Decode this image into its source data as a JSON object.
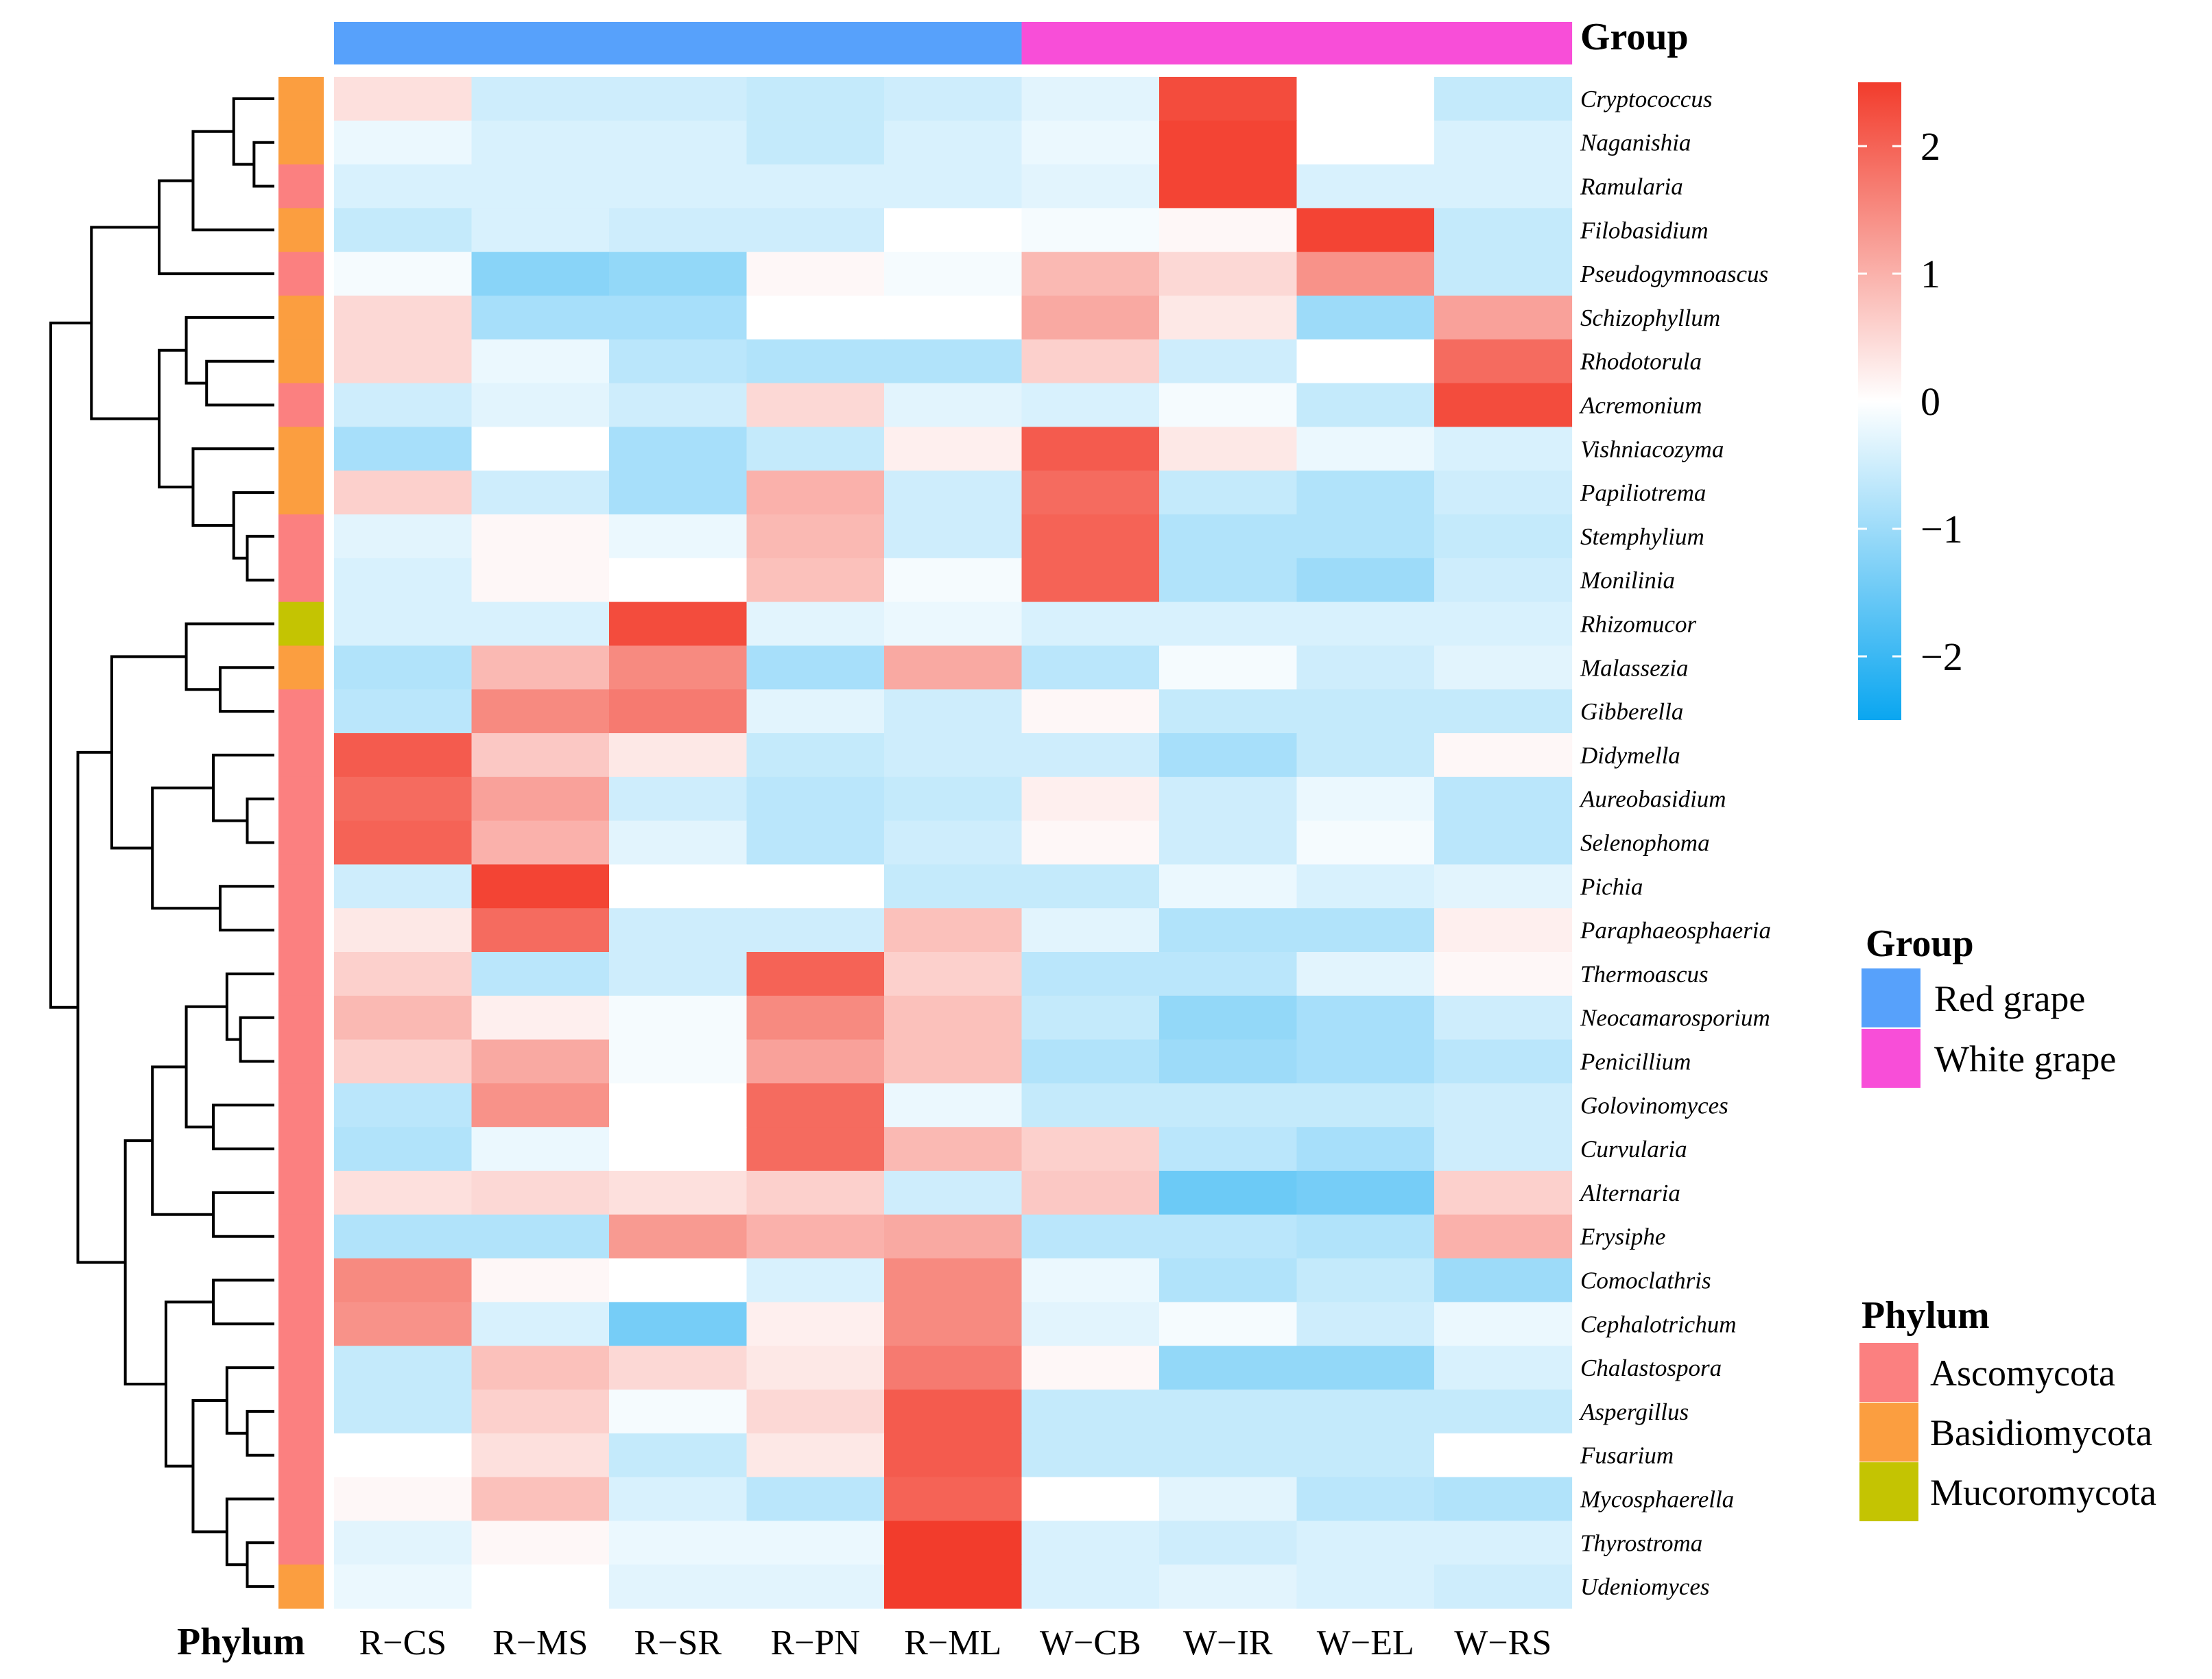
{
  "chart_data": {
    "type": "heatmap",
    "title": "",
    "columns": [
      "R−CS",
      "R−MS",
      "R−SR",
      "R−PN",
      "R−ML",
      "W−CB",
      "W−IR",
      "W−EL",
      "W−RS"
    ],
    "column_groups": [
      "Red grape",
      "Red grape",
      "Red grape",
      "Red grape",
      "Red grape",
      "White grape",
      "White grape",
      "White grape",
      "White grape"
    ],
    "rows": [
      "Cryptococcus",
      "Naganishia",
      "Ramularia",
      "Filobasidium",
      "Pseudogymnoascus",
      "Schizophyllum",
      "Rhodotorula",
      "Acremonium",
      "Vishniacozyma",
      "Papiliotrema",
      "Stemphylium",
      "Monilinia",
      "Rhizomucor",
      "Malassezia",
      "Gibberella",
      "Didymella",
      "Aureobasidium",
      "Selenophoma",
      "Pichia",
      "Paraphaeosphaeria",
      "Thermoascus",
      "Neocamarosporium",
      "Penicillium",
      "Golovinomyces",
      "Curvularia",
      "Alternaria",
      "Erysiphe",
      "Comoclathris",
      "Cephalotrichum",
      "Chalastospora",
      "Aspergillus",
      "Fusarium",
      "Mycosphaerella",
      "Thyrostroma",
      "Udeniomyces"
    ],
    "row_phylum": [
      "Basidiomycota",
      "Basidiomycota",
      "Ascomycota",
      "Basidiomycota",
      "Ascomycota",
      "Basidiomycota",
      "Basidiomycota",
      "Ascomycota",
      "Basidiomycota",
      "Basidiomycota",
      "Ascomycota",
      "Ascomycota",
      "Mucoromycota",
      "Basidiomycota",
      "Ascomycota",
      "Ascomycota",
      "Ascomycota",
      "Ascomycota",
      "Ascomycota",
      "Ascomycota",
      "Ascomycota",
      "Ascomycota",
      "Ascomycota",
      "Ascomycota",
      "Ascomycota",
      "Ascomycota",
      "Ascomycota",
      "Ascomycota",
      "Ascomycota",
      "Ascomycota",
      "Ascomycota",
      "Ascomycota",
      "Ascomycota",
      "Ascomycota",
      "Basidiomycota"
    ],
    "values": [
      [
        0.4,
        -0.5,
        -0.5,
        -0.6,
        -0.5,
        -0.3,
        2.3,
        0.0,
        -0.6
      ],
      [
        -0.2,
        -0.4,
        -0.4,
        -0.6,
        -0.4,
        -0.2,
        2.4,
        0.0,
        -0.4
      ],
      [
        -0.4,
        -0.4,
        -0.4,
        -0.4,
        -0.4,
        -0.3,
        2.4,
        -0.4,
        -0.4
      ],
      [
        -0.6,
        -0.4,
        -0.5,
        -0.5,
        0.0,
        -0.1,
        0.1,
        2.4,
        -0.6
      ],
      [
        -0.1,
        -1.2,
        -1.1,
        0.1,
        -0.1,
        0.9,
        0.5,
        1.4,
        -0.6
      ],
      [
        0.5,
        -0.9,
        -0.9,
        0.0,
        0.0,
        1.1,
        0.3,
        -1.0,
        1.2
      ],
      [
        0.5,
        -0.2,
        -0.7,
        -0.8,
        -0.8,
        0.6,
        -0.5,
        0.0,
        1.9
      ],
      [
        -0.5,
        -0.3,
        -0.5,
        0.5,
        -0.3,
        -0.4,
        -0.1,
        -0.6,
        2.3
      ],
      [
        -0.9,
        0.0,
        -0.9,
        -0.6,
        0.2,
        2.1,
        0.3,
        -0.2,
        -0.4
      ],
      [
        0.6,
        -0.5,
        -0.9,
        1.0,
        -0.5,
        1.9,
        -0.6,
        -0.8,
        -0.5
      ],
      [
        -0.3,
        0.1,
        -0.2,
        0.9,
        -0.5,
        2.0,
        -0.8,
        -0.8,
        -0.6
      ],
      [
        -0.4,
        0.1,
        0.0,
        0.8,
        -0.1,
        2.0,
        -0.8,
        -1.0,
        -0.5
      ],
      [
        -0.4,
        -0.4,
        2.3,
        -0.3,
        -0.2,
        -0.4,
        -0.4,
        -0.4,
        -0.4
      ],
      [
        -0.8,
        0.9,
        1.5,
        -0.9,
        1.1,
        -0.7,
        -0.1,
        -0.5,
        -0.3
      ],
      [
        -0.7,
        1.5,
        1.7,
        -0.3,
        -0.5,
        0.1,
        -0.6,
        -0.6,
        -0.6
      ],
      [
        2.1,
        0.7,
        0.3,
        -0.6,
        -0.5,
        -0.5,
        -0.9,
        -0.6,
        0.1
      ],
      [
        1.9,
        1.2,
        -0.5,
        -0.7,
        -0.6,
        0.2,
        -0.5,
        -0.2,
        -0.7
      ],
      [
        2.0,
        1.0,
        -0.3,
        -0.7,
        -0.5,
        0.1,
        -0.5,
        -0.1,
        -0.7
      ],
      [
        -0.5,
        2.4,
        0.0,
        0.0,
        -0.6,
        -0.6,
        -0.2,
        -0.4,
        -0.3
      ],
      [
        0.3,
        1.9,
        -0.5,
        -0.5,
        0.8,
        -0.3,
        -0.8,
        -0.8,
        0.2
      ],
      [
        0.6,
        -0.7,
        -0.5,
        2.0,
        0.6,
        -0.7,
        -0.7,
        -0.3,
        0.1
      ],
      [
        0.9,
        0.2,
        -0.1,
        1.5,
        0.8,
        -0.6,
        -1.1,
        -0.9,
        -0.5
      ],
      [
        0.6,
        1.1,
        -0.1,
        1.2,
        0.8,
        -0.8,
        -1.0,
        -0.9,
        -0.7
      ],
      [
        -0.7,
        1.4,
        0.0,
        1.9,
        -0.2,
        -0.6,
        -0.6,
        -0.6,
        -0.5
      ],
      [
        -0.8,
        -0.2,
        0.0,
        1.9,
        0.9,
        0.6,
        -0.7,
        -0.9,
        -0.5
      ],
      [
        0.4,
        0.5,
        0.4,
        0.6,
        -0.5,
        0.7,
        -1.5,
        -1.4,
        0.6
      ],
      [
        -0.8,
        -0.8,
        1.3,
        1.0,
        1.1,
        -0.7,
        -0.7,
        -0.8,
        1.0
      ],
      [
        1.5,
        0.1,
        0.0,
        -0.4,
        1.5,
        -0.2,
        -0.8,
        -0.6,
        -1.0
      ],
      [
        1.4,
        -0.4,
        -1.4,
        0.2,
        1.5,
        -0.3,
        -0.1,
        -0.5,
        -0.2
      ],
      [
        -0.6,
        0.8,
        0.5,
        0.3,
        1.7,
        0.1,
        -1.1,
        -1.1,
        -0.4
      ],
      [
        -0.6,
        0.6,
        -0.1,
        0.5,
        2.1,
        -0.6,
        -0.6,
        -0.6,
        -0.6
      ],
      [
        0.0,
        0.4,
        -0.6,
        0.3,
        2.1,
        -0.6,
        -0.6,
        -0.6,
        0.0
      ],
      [
        0.1,
        0.8,
        -0.4,
        -0.7,
        2.0,
        0.0,
        -0.3,
        -0.7,
        -0.8
      ],
      [
        -0.3,
        0.1,
        -0.2,
        -0.2,
        2.5,
        -0.4,
        -0.5,
        -0.4,
        -0.4
      ],
      [
        -0.2,
        0.0,
        -0.3,
        -0.3,
        2.5,
        -0.4,
        -0.3,
        -0.4,
        -0.5
      ]
    ],
    "color_scale": {
      "min": -2.5,
      "max": 2.5,
      "low_color": "#0aa6f0",
      "mid_color": "#ffffff",
      "high_color": "#f23c2c",
      "ticks": [
        2,
        1,
        0,
        -1,
        -2
      ],
      "tick_labels": [
        "2",
        "1",
        "0",
        "−1",
        "−2"
      ]
    },
    "annotations": {
      "group_title": "Group",
      "phylum_title": "Phylum",
      "group_colors": {
        "Red grape": "#57a1fb",
        "White grape": "#f84ed8"
      },
      "phylum_colors": {
        "Ascomycota": "#fb8080",
        "Basidiomycota": "#fb9e40",
        "Mucoromycota": "#c4c402"
      }
    },
    "legend": {
      "group_title": "Group",
      "group_entries": [
        "Red grape",
        "White grape"
      ],
      "phylum_title": "Phylum",
      "phylum_entries": [
        "Ascomycota",
        "Basidiomycota",
        "Mucoromycota"
      ],
      "position": "right"
    },
    "row_dendrogram": {
      "leaf_order": [
        0,
        1,
        2,
        3,
        4,
        5,
        6,
        7,
        8,
        9,
        10,
        11,
        12,
        13,
        14,
        15,
        16,
        17,
        18,
        19,
        20,
        21,
        22,
        23,
        24,
        25,
        26,
        27,
        28,
        29,
        30,
        31,
        32,
        33,
        34
      ],
      "merges": [
        [
          1,
          2,
          0.3
        ],
        [
          0,
          -1,
          0.6
        ],
        [
          -2,
          3,
          1.2
        ],
        [
          -3,
          4,
          1.7
        ],
        [
          6,
          7,
          1.0
        ],
        [
          5,
          -5,
          1.3
        ],
        [
          10,
          11,
          0.4
        ],
        [
          9,
          -7,
          0.6
        ],
        [
          8,
          -8,
          1.2
        ],
        [
          -6,
          -9,
          1.7
        ],
        [
          -4,
          -10,
          2.7
        ],
        [
          13,
          14,
          0.8
        ],
        [
          12,
          -12,
          1.3
        ],
        [
          16,
          17,
          0.4
        ],
        [
          15,
          -14,
          0.9
        ],
        [
          18,
          19,
          0.8
        ],
        [
          -15,
          -16,
          1.8
        ],
        [
          -13,
          -17,
          2.4
        ],
        [
          21,
          22,
          0.5
        ],
        [
          20,
          -19,
          0.7
        ],
        [
          23,
          24,
          0.9
        ],
        [
          -20,
          -21,
          1.3
        ],
        [
          25,
          26,
          0.9
        ],
        [
          -22,
          -23,
          1.8
        ],
        [
          27,
          28,
          0.9
        ],
        [
          30,
          31,
          0.4
        ],
        [
          29,
          -26,
          0.7
        ],
        [
          33,
          34,
          0.4
        ],
        [
          32,
          -28,
          0.7
        ],
        [
          -27,
          -29,
          1.2
        ],
        [
          -25,
          -30,
          1.6
        ],
        [
          -24,
          -31,
          2.2
        ],
        [
          -18,
          -32,
          2.9
        ],
        [
          -11,
          -33,
          3.3
        ]
      ]
    }
  }
}
